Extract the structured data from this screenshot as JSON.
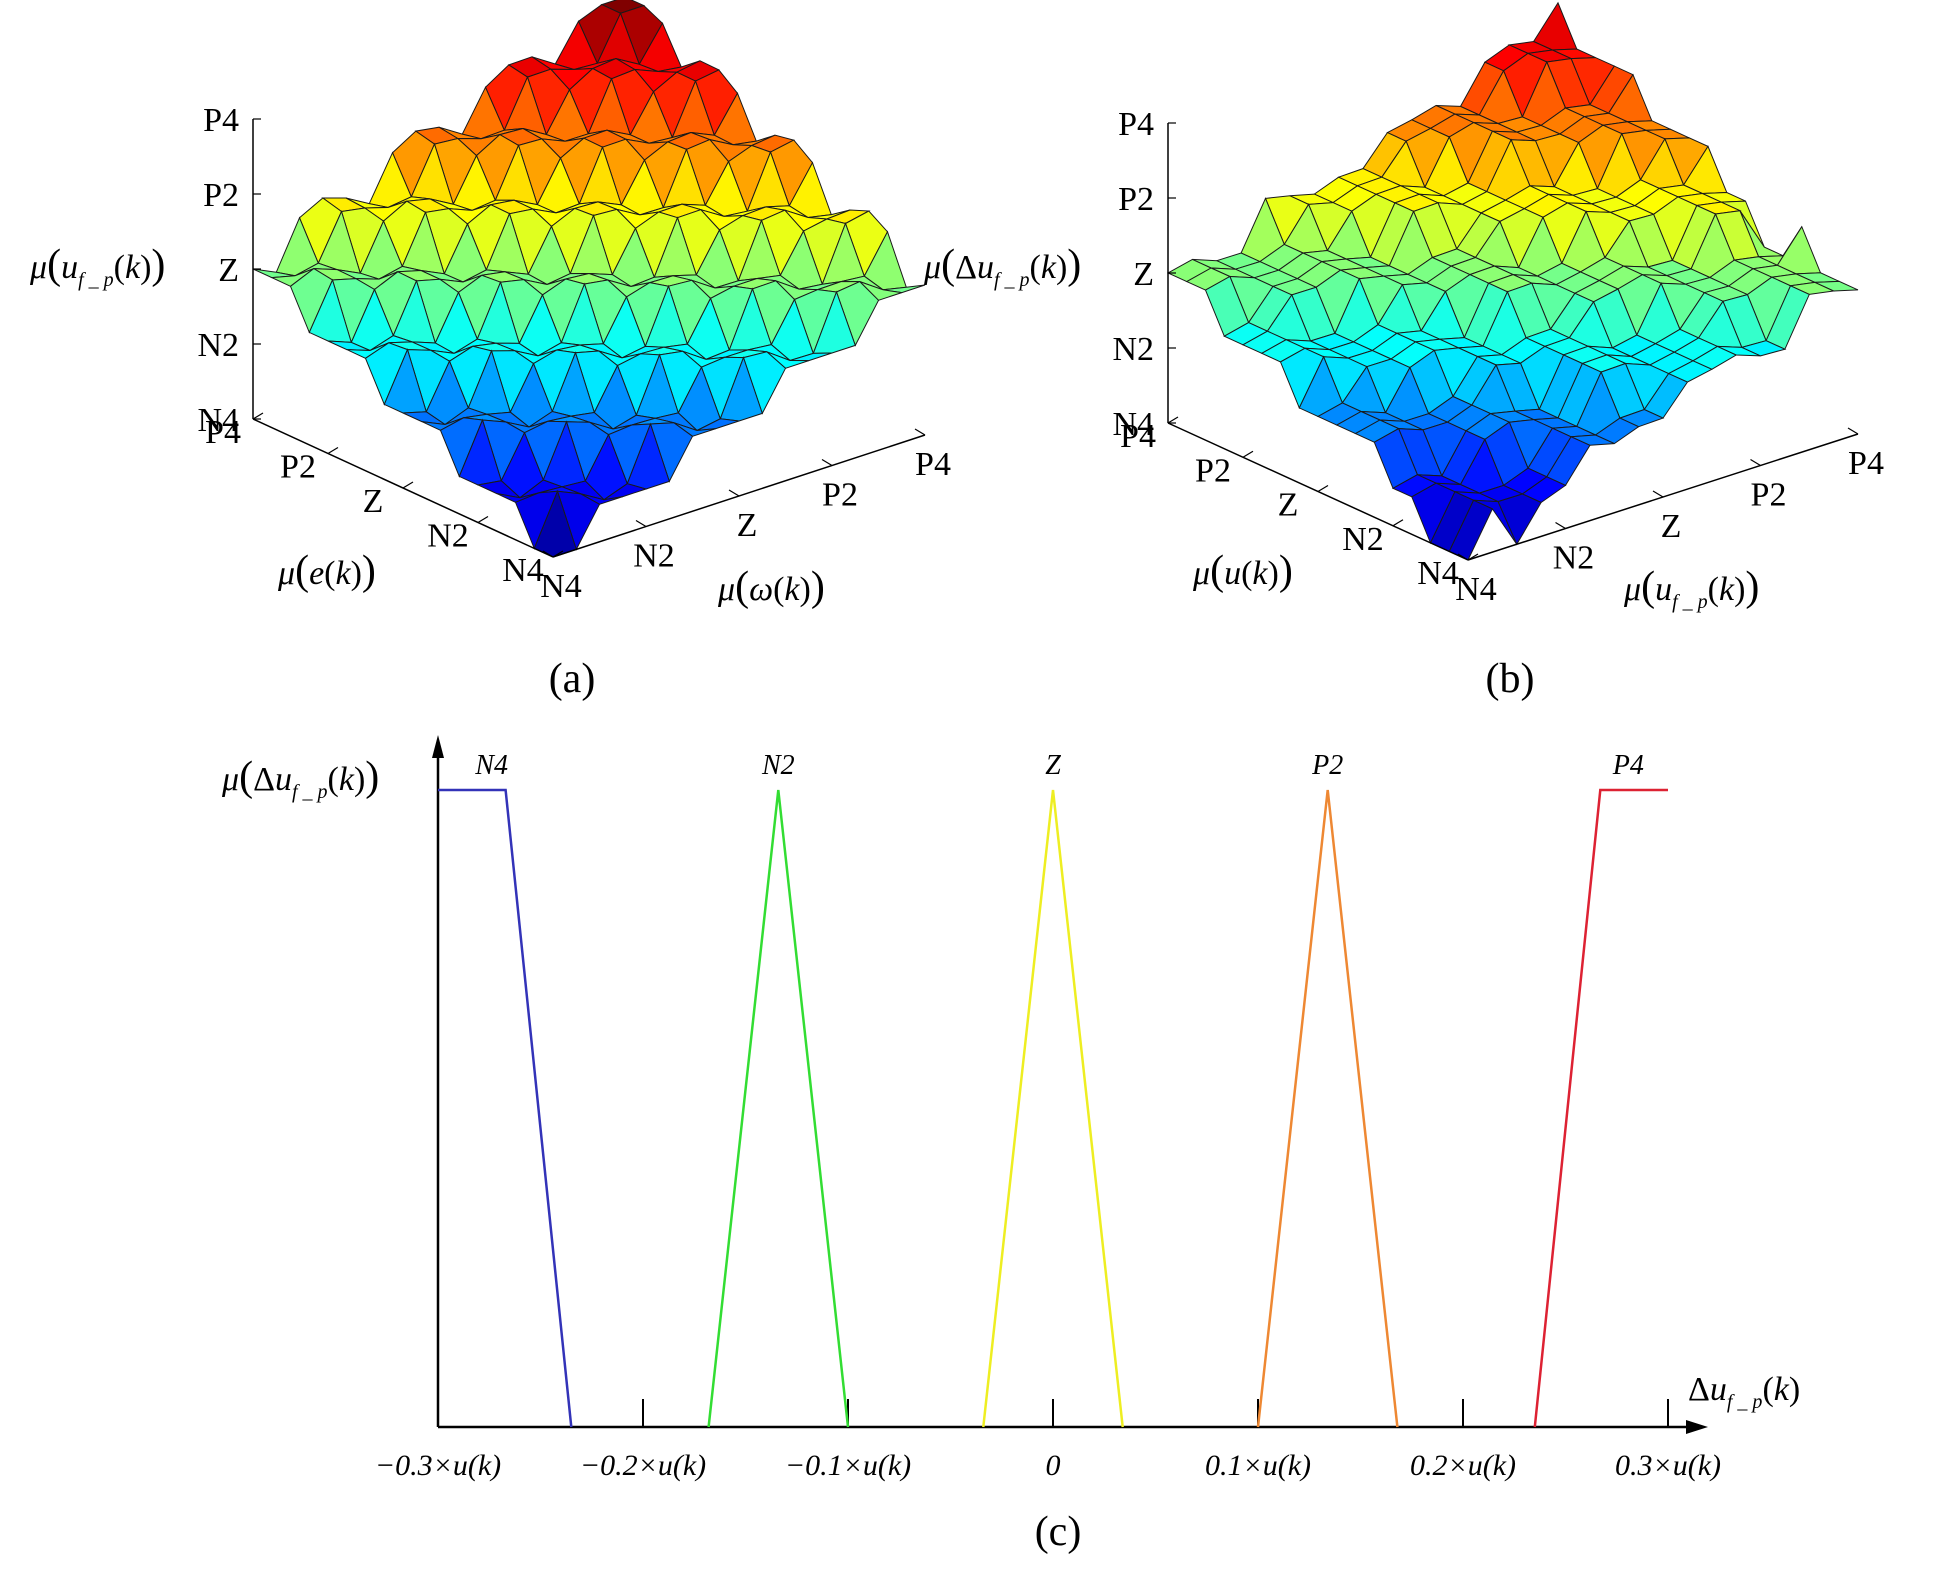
{
  "chart_data": [
    {
      "panel": "(a)",
      "type": "surface3d",
      "zlabel": "μ(u_f_p(k))",
      "xlabel": "μ(ω(k))",
      "ylabel": "μ(e(k))",
      "z_ticks": [
        "N4",
        "N2",
        "Z",
        "P2",
        "P4"
      ],
      "x_ticks": [
        "N4",
        "N2",
        "Z",
        "P2",
        "P4"
      ],
      "y_ticks": [
        "N4",
        "N2",
        "Z",
        "P2",
        "P4"
      ],
      "colormap": "jet",
      "surface": "rises from N4 at (N4,N4) corner to P4 at (P4,P4) corner; mid edges at Z",
      "grid_size": 17
    },
    {
      "panel": "(b)",
      "type": "surface3d",
      "zlabel": "μ(Δu_f_p(k))",
      "xlabel": "μ(u_f_p(k))",
      "ylabel": "μ(u(k))",
      "z_ticks": [
        "N4",
        "N2",
        "Z",
        "P2",
        "P4"
      ],
      "x_ticks": [
        "N4",
        "N2",
        "Z",
        "P2",
        "P4"
      ],
      "y_ticks": [
        "N4",
        "N2",
        "Z",
        "P2",
        "P4"
      ],
      "colormap": "jet",
      "surface": "rises from N4 at (N4,N4) corner to P4 at (P4,P4) corner; left and right corners near Z",
      "grid_size": 17
    },
    {
      "panel": "(c)",
      "type": "line",
      "ylabel": "μ(Δu_f_p(k))",
      "xlabel": "Δu_f_p(k)",
      "x_unit": "u(k)",
      "xlim": [
        -0.3,
        0.3
      ],
      "ylim": [
        0,
        1
      ],
      "x_ticks": [
        -0.3,
        -0.2,
        -0.1,
        0,
        0.1,
        0.2,
        0.3
      ],
      "x_tick_labels": [
        "−0.3×u(k)",
        "−0.2×u(k)",
        "−0.1×u(k)",
        "0",
        "0.1×u(k)",
        "0.2×u(k)",
        "0.3×u(k)"
      ],
      "series": [
        {
          "name": "N4",
          "color": "#3333b8",
          "points": [
            [
              -0.3,
              1
            ],
            [
              -0.267,
              1
            ],
            [
              -0.235,
              0
            ]
          ]
        },
        {
          "name": "N2",
          "color": "#33dd33",
          "points": [
            [
              -0.168,
              0
            ],
            [
              -0.134,
              1
            ],
            [
              -0.1,
              0
            ]
          ]
        },
        {
          "name": "Z",
          "color": "#eeee22",
          "points": [
            [
              -0.034,
              0
            ],
            [
              0,
              1
            ],
            [
              0.034,
              0
            ]
          ]
        },
        {
          "name": "P2",
          "color": "#ee8833",
          "points": [
            [
              0.1,
              0
            ],
            [
              0.134,
              1
            ],
            [
              0.168,
              0
            ]
          ]
        },
        {
          "name": "P4",
          "color": "#dd2233",
          "points": [
            [
              0.235,
              0
            ],
            [
              0.267,
              1
            ],
            [
              0.3,
              1
            ]
          ]
        }
      ]
    }
  ],
  "captions": {
    "a": "(a)",
    "b": "(b)",
    "c": "(c)"
  },
  "text": {
    "mu": "μ",
    "delta": "Δ",
    "u": "u",
    "e": "e",
    "omega": "ω",
    "k": "k",
    "sub_fp": "f _ p",
    "lp": "(",
    "rp": ")"
  }
}
